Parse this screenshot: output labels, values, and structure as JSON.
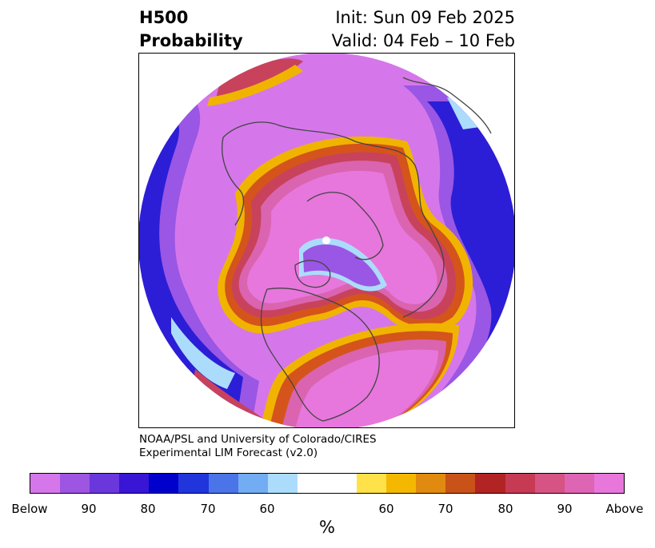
{
  "title": {
    "left_line1": "H500",
    "left_line2": "Probability",
    "right_line1": "Init: Sun 09 Feb 2025",
    "right_line2": "Valid: 04 Feb – 10 Feb"
  },
  "credit": {
    "line1": "NOAA/PSL and University of Colorado/CIRES",
    "line2": "Experimental LIM Forecast (v2.0)"
  },
  "colorbar": {
    "unit": "%",
    "colors": [
      "#d577ea",
      "#9d55e2",
      "#6a37dc",
      "#3915d6",
      "#0000cc",
      "#2035dc",
      "#4a74e8",
      "#72acf2",
      "#acdcfc",
      "#ffffff",
      "#ffffff",
      "#ffe24a",
      "#f4b800",
      "#e08a10",
      "#c85218",
      "#b22424",
      "#c63a54",
      "#d55484",
      "#de65b4",
      "#e877dc"
    ],
    "tick_labels": [
      "Below",
      "90",
      "80",
      "70",
      "60",
      "60",
      "70",
      "80",
      "90",
      "Above"
    ]
  },
  "map_colors": {
    "above_max": "#e777dc",
    "above_high": "#da64b0",
    "above_mid": "#c8425c",
    "above_low": "#d4541c",
    "above_edge": "#f0b400",
    "below_max": "#d577ea",
    "below_high": "#9a56e4",
    "below_mid": "#2b1ed6",
    "below_low": "#4a74e8",
    "below_edge": "#acdcfc",
    "coast": "#444444"
  }
}
